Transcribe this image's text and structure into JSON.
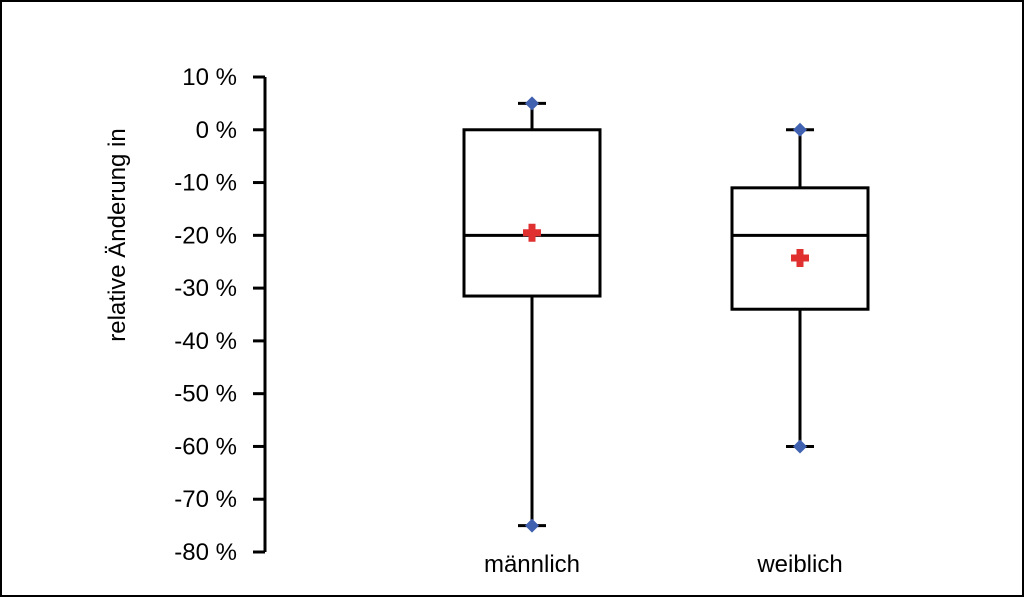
{
  "chart_data": {
    "type": "box",
    "title": "",
    "xlabel": "",
    "ylabel": "relative Änderung in",
    "ylim": [
      -80,
      10
    ],
    "yticks": [
      10,
      0,
      -10,
      -20,
      -30,
      -40,
      -50,
      -60,
      -70,
      -80
    ],
    "ytick_labels": [
      "10 %",
      "0 %",
      "-10 %",
      "-20 %",
      "-30 %",
      "-40 %",
      "-50 %",
      "-60 %",
      "-70 %",
      "-80 %"
    ],
    "categories": [
      "männlich",
      "weiblich"
    ],
    "boxes": [
      {
        "label": "männlich",
        "min": -75,
        "q1": -31.5,
        "median": -20,
        "q3": 0,
        "max": 5,
        "mean": -19.5
      },
      {
        "label": "weiblich",
        "min": -60,
        "q1": -34,
        "median": -20,
        "q3": -11,
        "max": 0,
        "mean": -24.3
      }
    ],
    "grid": false,
    "colors": {
      "box": "#000000",
      "whisker_end": "#4060b0",
      "mean_marker": "#e03030"
    }
  }
}
